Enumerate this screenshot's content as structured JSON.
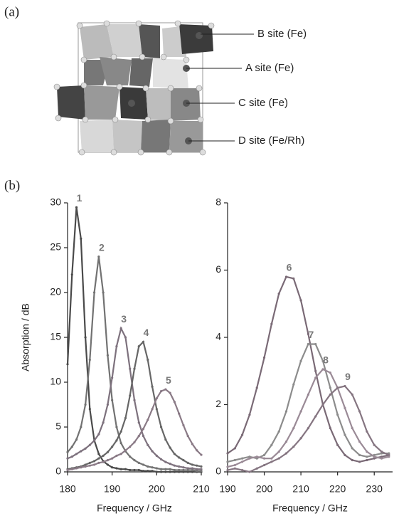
{
  "panel_labels": [
    "(a)",
    "(b)"
  ],
  "structure": {
    "labels": [
      "B site (Fe)",
      "A site (Fe)",
      "C site (Fe)",
      "D site (Fe/Rh)"
    ]
  },
  "chart_data": [
    {
      "type": "line",
      "xlabel": "Frequency / GHz",
      "ylabel": "Absorption / dB",
      "xlim": [
        180,
        210
      ],
      "ylim": [
        0,
        30
      ],
      "xticks": [
        180,
        190,
        200,
        210
      ],
      "yticks": [
        0,
        5,
        10,
        15,
        20,
        25,
        30
      ],
      "x": [
        180,
        181,
        182,
        183,
        184,
        185,
        186,
        187,
        188,
        189,
        190,
        191,
        192,
        193,
        194,
        195,
        196,
        197,
        198,
        199,
        200,
        201,
        202,
        203,
        204,
        205,
        206,
        207,
        208,
        209,
        210
      ],
      "series": [
        {
          "name": "1",
          "color": "#4a4a4a",
          "values": [
            12,
            22,
            29.5,
            26,
            15,
            7,
            3.5,
            2,
            1.2,
            0.8,
            0.5,
            0.4,
            0.3,
            0.3,
            0.2,
            0.2,
            0.2,
            0.1,
            0.1,
            0.1,
            0,
            0,
            0,
            0,
            0,
            0,
            0,
            0,
            0,
            0,
            0
          ]
        },
        {
          "name": "2",
          "color": "#727272",
          "values": [
            2.2,
            2.8,
            3.6,
            5,
            7.5,
            12.5,
            20,
            24,
            20,
            13,
            8,
            5,
            3.2,
            2.3,
            1.7,
            1.3,
            1,
            0.8,
            0.6,
            0.5,
            0.4,
            0.3,
            0.3,
            0.3,
            0.2,
            0.2,
            0.2,
            0.2,
            0.2,
            0.1,
            0.1
          ]
        },
        {
          "name": "3",
          "color": "#7d717d",
          "values": [
            1.5,
            1.7,
            2,
            2.3,
            2.6,
            3,
            3.5,
            4.2,
            5.5,
            7.5,
            10.5,
            14,
            16,
            15,
            11.5,
            8,
            5.5,
            4,
            3,
            2.3,
            1.8,
            1.4,
            1.1,
            0.9,
            0.7,
            0.6,
            0.5,
            0.4,
            0.4,
            0.3,
            0.3
          ]
        },
        {
          "name": "4",
          "color": "#666666",
          "values": [
            0.3,
            0.4,
            0.5,
            0.6,
            0.8,
            1,
            1.2,
            1.5,
            1.8,
            2.2,
            2.8,
            3.5,
            4.5,
            6,
            8.5,
            11.5,
            14,
            14.5,
            12.5,
            9.5,
            7,
            5,
            3.6,
            2.7,
            2,
            1.6,
            1.3,
            1,
            0.8,
            0.7,
            0.6
          ]
        },
        {
          "name": "5",
          "color": "#8a7a86",
          "values": [
            0.2,
            0.3,
            0.4,
            0.5,
            0.6,
            0.7,
            0.8,
            1,
            1.1,
            1.3,
            1.5,
            1.8,
            2,
            2.4,
            2.8,
            3.3,
            4,
            4.8,
            5.8,
            7,
            8.2,
            9,
            9.2,
            8.8,
            7.8,
            6.5,
            5.2,
            4,
            3.1,
            2.4,
            1.9
          ]
        }
      ]
    },
    {
      "type": "line",
      "xlabel": "Frequency / GHz",
      "xlim": [
        190,
        235
      ],
      "ylim": [
        0,
        8
      ],
      "xticks": [
        190,
        200,
        210,
        220,
        230
      ],
      "yticks": [
        0,
        2,
        4,
        6,
        8
      ],
      "x": [
        190,
        192,
        194,
        196,
        198,
        200,
        202,
        204,
        206,
        208,
        210,
        212,
        214,
        216,
        218,
        220,
        222,
        224,
        226,
        228,
        230,
        232,
        234
      ],
      "series": [
        {
          "name": "6",
          "color": "#7a6a76",
          "values": [
            0.55,
            0.7,
            1.1,
            1.7,
            2.5,
            3.4,
            4.4,
            5.3,
            5.8,
            5.75,
            5.1,
            4.1,
            3,
            2,
            1.3,
            0.8,
            0.5,
            0.35,
            0.3,
            0.35,
            0.4,
            0.45,
            0.5
          ]
        },
        {
          "name": "7",
          "color": "#8c8c8c",
          "values": [
            0.3,
            0.35,
            0.4,
            0.45,
            0.4,
            0.5,
            0.8,
            1.2,
            1.8,
            2.6,
            3.3,
            3.8,
            3.8,
            3.3,
            2.5,
            1.7,
            1.1,
            0.7,
            0.5,
            0.45,
            0.5,
            0.55,
            0.55
          ]
        },
        {
          "name": "8",
          "color": "#9a8a96",
          "values": [
            0.15,
            0.2,
            0.3,
            0.4,
            0.45,
            0.4,
            0.4,
            0.6,
            0.9,
            1.3,
            1.8,
            2.3,
            2.8,
            3.05,
            2.95,
            2.5,
            1.9,
            1.3,
            0.9,
            0.6,
            0.45,
            0.4,
            0.45
          ]
        },
        {
          "name": "9",
          "color": "#857581",
          "values": [
            0.05,
            0.1,
            0.05,
            0,
            0.1,
            0.2,
            0.3,
            0.4,
            0.55,
            0.75,
            1,
            1.3,
            1.65,
            2,
            2.3,
            2.5,
            2.55,
            2.3,
            1.8,
            1.2,
            0.8,
            0.6,
            0.5
          ]
        }
      ]
    }
  ]
}
